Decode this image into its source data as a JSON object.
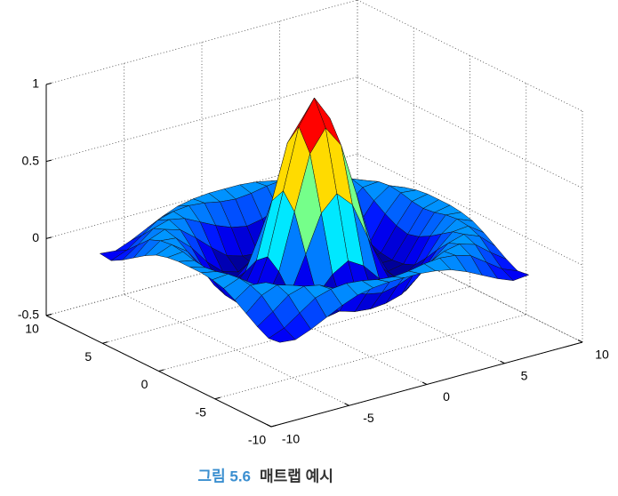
{
  "chart_data": {
    "type": "surface",
    "colormap": "jet",
    "grid": true,
    "x": [
      -8,
      -7,
      -6,
      -5,
      -4,
      -3,
      -2,
      -1,
      0,
      1,
      2,
      3,
      4,
      5,
      6,
      7,
      8
    ],
    "y": [
      -8,
      -7,
      -6,
      -5,
      -4,
      -3,
      -2,
      -1,
      0,
      1,
      2,
      3,
      4,
      5,
      6,
      7,
      8
    ],
    "z": [
      [
        -0.08,
        -0.09,
        -0.05,
        0,
        0.05,
        0.09,
        0.11,
        0.12,
        0.12,
        0.12,
        0.11,
        0.09,
        0.05,
        0,
        -0.05,
        -0.09,
        -0.08
      ],
      [
        -0.09,
        -0.05,
        0.02,
        0.09,
        0.12,
        0.13,
        0.12,
        0.1,
        0.09,
        0.1,
        0.12,
        0.13,
        0.12,
        0.09,
        0.02,
        -0.05,
        -0.09
      ],
      [
        -0.05,
        0.02,
        0.1,
        0.13,
        0.11,
        0.06,
        0.01,
        -0.03,
        -0.05,
        -0.03,
        0.01,
        0.06,
        0.11,
        0.13,
        0.1,
        0.02,
        -0.05
      ],
      [
        0,
        0.09,
        0.13,
        0.1,
        0.02,
        -0.07,
        -0.15,
        -0.18,
        -0.19,
        -0.18,
        -0.15,
        -0.07,
        0.02,
        0.1,
        0.13,
        0.09,
        0
      ],
      [
        0.05,
        0.12,
        0.11,
        0.02,
        -0.1,
        -0.19,
        -0.22,
        -0.2,
        -0.19,
        -0.2,
        -0.22,
        -0.19,
        -0.1,
        0.02,
        0.11,
        0.12,
        0.05
      ],
      [
        0.09,
        0.13,
        0.06,
        -0.07,
        -0.19,
        -0.21,
        -0.12,
        -0.01,
        0.05,
        -0.01,
        -0.12,
        -0.21,
        -0.19,
        -0.07,
        0.06,
        0.13,
        0.09
      ],
      [
        0.11,
        0.12,
        0.01,
        -0.15,
        -0.22,
        -0.12,
        0.11,
        0.35,
        0.45,
        0.35,
        0.11,
        -0.12,
        -0.22,
        -0.15,
        0.01,
        0.12,
        0.11
      ],
      [
        0.12,
        0.1,
        -0.03,
        -0.18,
        -0.2,
        -0.01,
        0.35,
        0.7,
        0.84,
        0.7,
        0.35,
        -0.01,
        -0.2,
        -0.18,
        -0.03,
        0.1,
        0.12
      ],
      [
        0.12,
        0.09,
        -0.05,
        -0.19,
        -0.19,
        0.05,
        0.45,
        0.84,
        1,
        0.84,
        0.45,
        0.05,
        -0.19,
        -0.19,
        -0.05,
        0.09,
        0.12
      ],
      [
        0.12,
        0.1,
        -0.03,
        -0.18,
        -0.2,
        -0.01,
        0.35,
        0.7,
        0.84,
        0.7,
        0.35,
        -0.01,
        -0.2,
        -0.18,
        -0.03,
        0.1,
        0.12
      ],
      [
        0.11,
        0.12,
        0.01,
        -0.15,
        -0.22,
        -0.12,
        0.11,
        0.35,
        0.45,
        0.35,
        0.11,
        -0.12,
        -0.22,
        -0.15,
        0.01,
        0.12,
        0.11
      ],
      [
        0.09,
        0.13,
        0.06,
        -0.07,
        -0.19,
        -0.21,
        -0.12,
        -0.01,
        0.05,
        -0.01,
        -0.12,
        -0.21,
        -0.19,
        -0.07,
        0.06,
        0.13,
        0.09
      ],
      [
        0.05,
        0.12,
        0.11,
        0.02,
        -0.1,
        -0.19,
        -0.22,
        -0.2,
        -0.19,
        -0.2,
        -0.22,
        -0.19,
        -0.1,
        0.02,
        0.11,
        0.12,
        0.05
      ],
      [
        0,
        0.09,
        0.13,
        0.1,
        0.02,
        -0.07,
        -0.15,
        -0.18,
        -0.19,
        -0.18,
        -0.15,
        -0.07,
        0.02,
        0.1,
        0.13,
        0.09,
        0
      ],
      [
        -0.05,
        0.02,
        0.1,
        0.13,
        0.11,
        0.06,
        0.01,
        -0.03,
        -0.05,
        -0.03,
        0.01,
        0.06,
        0.11,
        0.13,
        0.1,
        0.02,
        -0.05
      ],
      [
        -0.09,
        -0.05,
        0.02,
        0.09,
        0.12,
        0.13,
        0.12,
        0.1,
        0.09,
        0.1,
        0.12,
        0.13,
        0.12,
        0.09,
        0.02,
        -0.05,
        -0.09
      ],
      [
        -0.08,
        -0.09,
        -0.05,
        0,
        0.05,
        0.09,
        0.11,
        0.12,
        0.12,
        0.12,
        0.11,
        0.09,
        0.05,
        0,
        -0.05,
        -0.09,
        -0.08
      ]
    ],
    "xlim": [
      -10,
      10
    ],
    "ylim": [
      -10,
      10
    ],
    "zlim": [
      -0.5,
      1
    ],
    "xticks": [
      -10,
      -5,
      0,
      5,
      10
    ],
    "yticks": [
      -10,
      -5,
      0,
      5,
      10
    ],
    "zticks": [
      -0.5,
      0,
      0.5,
      1
    ]
  },
  "caption": {
    "label": "그림 5.6",
    "text": "매트랩 예시"
  }
}
